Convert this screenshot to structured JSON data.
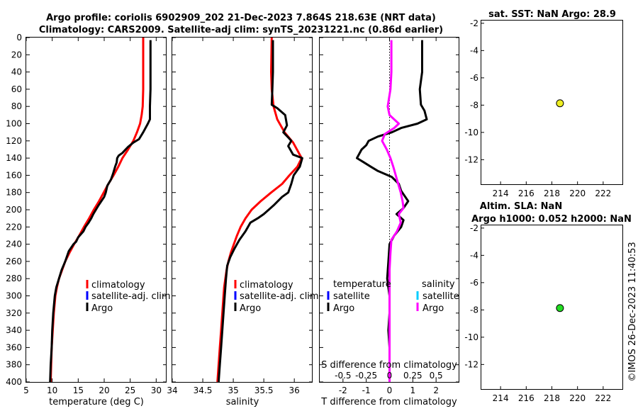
{
  "title": {
    "line1": "Argo profile: coriolis 6902909_202 21-Dec-2023 7.864S 218.63E (NRT data)",
    "line2": "Climatology: CARS2009. Satellite-adj clim: synTS_20231221.nc (0.86d earlier)"
  },
  "colors": {
    "climatology": "#ff0000",
    "satellite": "#0000ff",
    "satellite_s": "#00ccff",
    "argo": "#000000",
    "argo_s": "#ff00ff"
  },
  "timestamp": "©IMOS 26-Dec-2023 11:40:53",
  "chart_data": [
    {
      "id": "temperature",
      "type": "line",
      "xlabel": "temperature (deg C)",
      "xlim": [
        5,
        32
      ],
      "xticks": [
        5,
        10,
        15,
        20,
        25,
        30
      ],
      "ylim": [
        400,
        0
      ],
      "yticks": [
        0,
        20,
        40,
        60,
        80,
        100,
        120,
        140,
        160,
        180,
        200,
        220,
        240,
        260,
        280,
        300,
        320,
        340,
        360,
        380,
        400
      ],
      "legend": [
        "climatology",
        "satellite-adj. clim",
        "Argo"
      ],
      "series": [
        {
          "name": "climatology",
          "color": "#ff0000",
          "points": [
            [
              27.5,
              0
            ],
            [
              27.5,
              20
            ],
            [
              27.5,
              60
            ],
            [
              27.4,
              80
            ],
            [
              27.2,
              90
            ],
            [
              26.9,
              100
            ],
            [
              26.3,
              110
            ],
            [
              25.6,
              120
            ],
            [
              24.6,
              130
            ],
            [
              23.5,
              140
            ],
            [
              22.7,
              150
            ],
            [
              21.8,
              160
            ],
            [
              20.8,
              170
            ],
            [
              19.9,
              180
            ],
            [
              19,
              190
            ],
            [
              18,
              200
            ],
            [
              17.1,
              210
            ],
            [
              16.1,
              220
            ],
            [
              15.2,
              230
            ],
            [
              14.2,
              240
            ],
            [
              13.3,
              250
            ],
            [
              12.5,
              260
            ],
            [
              11.9,
              270
            ],
            [
              11.3,
              280
            ],
            [
              10.9,
              290
            ],
            [
              10.6,
              300
            ],
            [
              10.3,
              320
            ],
            [
              10.1,
              340
            ],
            [
              9.9,
              360
            ],
            [
              9.8,
              380
            ],
            [
              9.7,
              400
            ]
          ]
        },
        {
          "name": "Argo",
          "color": "#000000",
          "points": [
            [
              28.9,
              3
            ],
            [
              28.9,
              20
            ],
            [
              28.9,
              40
            ],
            [
              28.9,
              60
            ],
            [
              28.8,
              80
            ],
            [
              28.8,
              95
            ],
            [
              28.4,
              100
            ],
            [
              27.5,
              110
            ],
            [
              26.7,
              118
            ],
            [
              25.6,
              122
            ],
            [
              24.6,
              127
            ],
            [
              24.1,
              130
            ],
            [
              23.5,
              134
            ],
            [
              22.8,
              137
            ],
            [
              22.5,
              140
            ],
            [
              22.4,
              145
            ],
            [
              22.1,
              150
            ],
            [
              21.7,
              158
            ],
            [
              21.3,
              165
            ],
            [
              20.6,
              172
            ],
            [
              20.3,
              180
            ],
            [
              20,
              185
            ],
            [
              18.9,
              195
            ],
            [
              17.9,
              205
            ],
            [
              17.5,
              210
            ],
            [
              17,
              215
            ],
            [
              16.4,
              220
            ],
            [
              16,
              225
            ],
            [
              15,
              232
            ],
            [
              14.6,
              237
            ],
            [
              14.1,
              240
            ],
            [
              13.2,
              248
            ],
            [
              12.5,
              260
            ],
            [
              11.8,
              270
            ],
            [
              11.3,
              280
            ],
            [
              10.8,
              290
            ],
            [
              10.5,
              300
            ],
            [
              10.2,
              320
            ],
            [
              10,
              340
            ],
            [
              9.9,
              360
            ],
            [
              9.7,
              380
            ],
            [
              9.6,
              400
            ]
          ]
        }
      ]
    },
    {
      "id": "salinity",
      "type": "line",
      "xlabel": "salinity",
      "xlim": [
        34,
        36.3
      ],
      "xticks": [
        34,
        34.5,
        35,
        35.5,
        36
      ],
      "xticklabels": [
        "34",
        "34.5",
        "35",
        "35.5",
        "36"
      ],
      "ylim": [
        400,
        0
      ],
      "legend": [
        "climatology",
        "satellite-adj. clim",
        "Argo"
      ],
      "series": [
        {
          "name": "climatology",
          "color": "#ff0000",
          "points": [
            [
              35.63,
              0
            ],
            [
              35.62,
              40
            ],
            [
              35.63,
              60
            ],
            [
              35.66,
              80
            ],
            [
              35.72,
              95
            ],
            [
              35.84,
              110
            ],
            [
              35.98,
              122
            ],
            [
              36.12,
              140
            ],
            [
              36.05,
              150
            ],
            [
              35.92,
              160
            ],
            [
              35.8,
              170
            ],
            [
              35.62,
              180
            ],
            [
              35.45,
              190
            ],
            [
              35.3,
              200
            ],
            [
              35.2,
              210
            ],
            [
              35.12,
              220
            ],
            [
              35.06,
              230
            ],
            [
              35.01,
              240
            ],
            [
              34.96,
              250
            ],
            [
              34.92,
              260
            ],
            [
              34.89,
              270
            ],
            [
              34.87,
              280
            ],
            [
              34.85,
              290
            ],
            [
              34.84,
              300
            ],
            [
              34.82,
              320
            ],
            [
              34.8,
              340
            ],
            [
              34.78,
              360
            ],
            [
              34.76,
              380
            ],
            [
              34.74,
              400
            ]
          ]
        },
        {
          "name": "Argo",
          "color": "#000000",
          "points": [
            [
              35.65,
              3
            ],
            [
              35.65,
              40
            ],
            [
              35.64,
              60
            ],
            [
              35.63,
              78
            ],
            [
              35.72,
              82
            ],
            [
              35.85,
              90
            ],
            [
              35.88,
              102
            ],
            [
              35.82,
              110
            ],
            [
              35.9,
              116
            ],
            [
              35.95,
              120
            ],
            [
              35.9,
              126
            ],
            [
              35.98,
              136
            ],
            [
              36.13,
              140
            ],
            [
              36.09,
              150
            ],
            [
              35.99,
              160
            ],
            [
              35.95,
              170
            ],
            [
              35.9,
              180
            ],
            [
              35.8,
              185
            ],
            [
              35.66,
              195
            ],
            [
              35.5,
              205
            ],
            [
              35.4,
              210
            ],
            [
              35.28,
              215
            ],
            [
              35.2,
              225
            ],
            [
              35.1,
              235
            ],
            [
              35.02,
              245
            ],
            [
              34.95,
              255
            ],
            [
              34.9,
              265
            ],
            [
              34.88,
              280
            ],
            [
              34.86,
              300
            ],
            [
              34.84,
              320
            ],
            [
              34.82,
              340
            ],
            [
              34.8,
              360
            ],
            [
              34.78,
              380
            ],
            [
              34.76,
              400
            ]
          ]
        }
      ]
    },
    {
      "id": "difference",
      "type": "line",
      "xlabel": "T difference from climatology",
      "xlim": [
        -3,
        3
      ],
      "xticks": [
        -2,
        -1,
        0,
        1,
        2
      ],
      "top_label": "S difference from climatology",
      "top_ticks": [
        "-0.5",
        "-0.25",
        "0",
        "0.25",
        "0.5"
      ],
      "ylim": [
        400,
        0
      ],
      "legend_t_title": "temperature",
      "legend_s_title": "salinity",
      "legend_t": [
        "satellite",
        "Argo"
      ],
      "legend_s": [
        "satellite",
        "Argo"
      ],
      "series": [
        {
          "name": "T Argo",
          "color": "#000000",
          "points": [
            [
              1.4,
              3
            ],
            [
              1.4,
              40
            ],
            [
              1.3,
              60
            ],
            [
              1.35,
              78
            ],
            [
              1.5,
              85
            ],
            [
              1.6,
              95
            ],
            [
              1.2,
              100
            ],
            [
              0.5,
              105
            ],
            [
              0.1,
              110
            ],
            [
              -0.5,
              115
            ],
            [
              -0.9,
              120
            ],
            [
              -1.0,
              125
            ],
            [
              -1.2,
              130
            ],
            [
              -1.4,
              140
            ],
            [
              -1.1,
              145
            ],
            [
              -0.8,
              150
            ],
            [
              -0.5,
              155
            ],
            [
              0.1,
              162
            ],
            [
              0.4,
              170
            ],
            [
              0.5,
              178
            ],
            [
              0.8,
              190
            ],
            [
              0.6,
              198
            ],
            [
              0.3,
              205
            ],
            [
              0.6,
              212
            ],
            [
              0.5,
              220
            ],
            [
              0.2,
              230
            ],
            [
              0,
              240
            ],
            [
              -0.05,
              260
            ],
            [
              -0.1,
              280
            ],
            [
              0,
              300
            ],
            [
              0,
              320
            ],
            [
              -0.05,
              340
            ],
            [
              0,
              360
            ],
            [
              0,
              380
            ],
            [
              0,
              400
            ]
          ]
        },
        {
          "name": "S Argo",
          "color": "#ff00ff",
          "points": [
            [
              0.02,
              3
            ],
            [
              0.02,
              40
            ],
            [
              0.01,
              60
            ],
            [
              -0.02,
              80
            ],
            [
              0,
              90
            ],
            [
              0.1,
              100
            ],
            [
              0.05,
              105
            ],
            [
              -0.05,
              112
            ],
            [
              -0.08,
              120
            ],
            [
              -0.03,
              130
            ],
            [
              0.01,
              140
            ],
            [
              0.04,
              150
            ],
            [
              0.08,
              165
            ],
            [
              0.12,
              180
            ],
            [
              0.14,
              190
            ],
            [
              0.15,
              198
            ],
            [
              0.1,
              205
            ],
            [
              0.12,
              215
            ],
            [
              0.08,
              225
            ],
            [
              0.02,
              235
            ],
            [
              0.01,
              250
            ],
            [
              0,
              270
            ],
            [
              0,
              300
            ],
            [
              0,
              330
            ],
            [
              0,
              360
            ],
            [
              0,
              390
            ],
            [
              0,
              400
            ]
          ]
        }
      ]
    },
    {
      "id": "sst_map",
      "type": "scatter",
      "title": "sat. SST: NaN Argo: 28.9",
      "xlim": [
        212.5,
        223.5
      ],
      "xticks": [
        214,
        216,
        218,
        220,
        222
      ],
      "ylim": [
        -13.8,
        -1.8
      ],
      "yticks": [
        -2,
        -4,
        -6,
        -8,
        -10,
        -12
      ],
      "points": [
        {
          "x": 218.63,
          "y": -7.864,
          "color": "#eeee22"
        }
      ]
    },
    {
      "id": "sla_map",
      "type": "scatter",
      "title_line1": "Altim. SLA: NaN",
      "title_line2": "Argo h1000: 0.052 h2000: NaN",
      "xlim": [
        212.5,
        223.5
      ],
      "xticks": [
        214,
        216,
        218,
        220,
        222
      ],
      "ylim": [
        -13.8,
        -1.8
      ],
      "yticks": [
        -2,
        -4,
        -6,
        -8,
        -10,
        -12
      ],
      "points": [
        {
          "x": 218.63,
          "y": -7.864,
          "color": "#22dd22"
        }
      ]
    }
  ]
}
